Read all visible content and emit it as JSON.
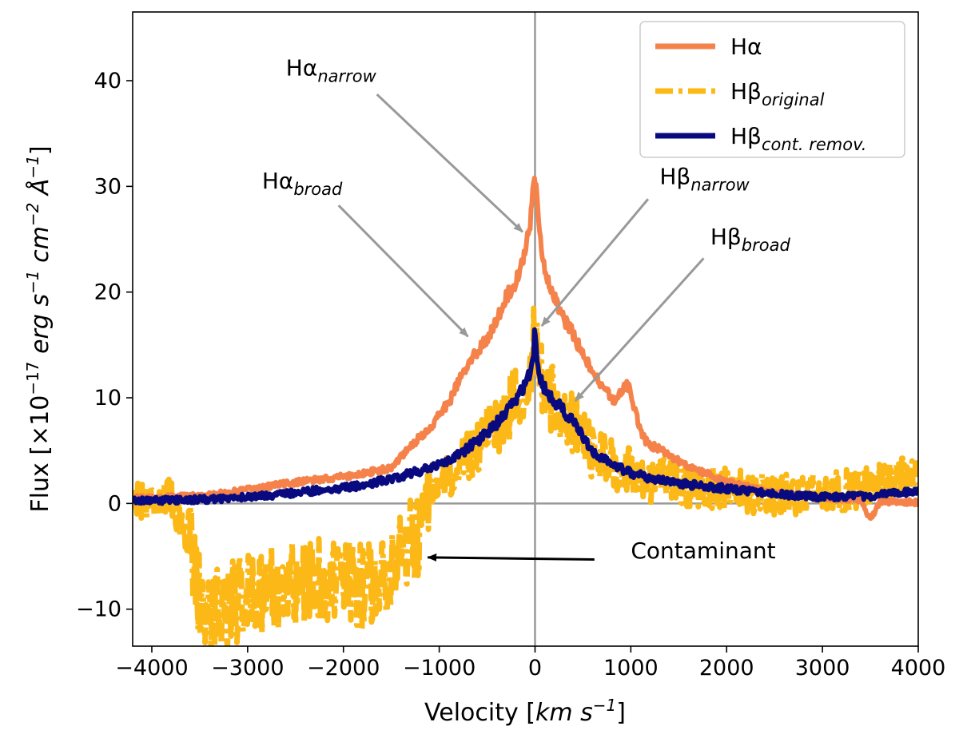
{
  "chart_data": {
    "type": "line",
    "title": "",
    "xlabel": "Velocity [km s⁻¹]",
    "xlabel_parts": {
      "main": "Velocity [",
      "unit": "km s",
      "exp": "−1",
      "close": "]"
    },
    "ylabel": "Flux [×10⁻¹⁷ erg s⁻¹ cm⁻² Å⁻¹]",
    "ylabel_parts": {
      "a": "Flux [×10",
      "e1": "−17",
      "b": " erg s",
      "e2": "−1",
      "c": " cm",
      "e3": "−2",
      "d": " Å",
      "e4": "−1",
      "end": "]"
    },
    "xlim": [
      -4200,
      4000
    ],
    "ylim": [
      -13.5,
      46.5
    ],
    "xticks": [
      -4000,
      -3000,
      -2000,
      -1000,
      0,
      1000,
      2000,
      3000,
      4000
    ],
    "xtick_labels": [
      "−4000",
      "−3000",
      "−2000",
      "−1000",
      "0",
      "1000",
      "2000",
      "3000",
      "4000"
    ],
    "yticks": [
      -10,
      0,
      10,
      20,
      30,
      40
    ],
    "ytick_labels": [
      "−10",
      "0",
      "10",
      "20",
      "30",
      "40"
    ],
    "reference_lines": {
      "x": 0,
      "y": 0,
      "color": "#999999"
    },
    "legend": {
      "position": "top-right",
      "entries": [
        {
          "base": "Hα",
          "sub": "",
          "color": "#f5824a",
          "style": "solid"
        },
        {
          "base": "Hβ",
          "sub": "original",
          "color": "#fbb816",
          "style": "dashdot"
        },
        {
          "base": "Hβ",
          "sub": "cont. remov.",
          "color": "#0a0a80",
          "style": "solid"
        }
      ]
    },
    "series": [
      {
        "name": "Hα",
        "color": "#f5824a",
        "style": "solid",
        "x": [
          -4200,
          -3800,
          -3400,
          -3000,
          -2600,
          -2200,
          -1800,
          -1500,
          -1300,
          -1100,
          -1000,
          -900,
          -800,
          -700,
          -600,
          -500,
          -400,
          -300,
          -200,
          -150,
          -100,
          -60,
          -30,
          -10,
          0,
          10,
          30,
          60,
          100,
          150,
          200,
          300,
          400,
          500,
          600,
          700,
          800,
          850,
          900,
          950,
          1000,
          1050,
          1100,
          1150,
          1200,
          1300,
          1400,
          1500,
          1600,
          1800,
          2000,
          2500,
          3000,
          3400,
          3500,
          3600,
          4000
        ],
        "y": [
          0.5,
          0.6,
          0.8,
          1.3,
          1.9,
          2.3,
          2.8,
          3.4,
          5.5,
          7.0,
          8.5,
          9.5,
          11.5,
          13.0,
          14.5,
          15.5,
          17.5,
          19.5,
          21.0,
          22.5,
          24.0,
          26.0,
          28.5,
          30.5,
          31.0,
          30.0,
          28.0,
          25.0,
          22.0,
          20.5,
          19.5,
          17.5,
          16.0,
          14.0,
          12.5,
          11.0,
          10.0,
          9.5,
          10.8,
          11.3,
          10.5,
          8.5,
          7.0,
          6.0,
          5.5,
          5.2,
          4.5,
          4.0,
          3.5,
          2.8,
          2.0,
          1.0,
          0.6,
          0.3,
          -1.5,
          0.2,
          0.1
        ],
        "noise": 0.35
      },
      {
        "name": "Hβ original",
        "color": "#fbb816",
        "style": "dashdot",
        "x": [
          -4200,
          -3800,
          -3600,
          -3500,
          -3400,
          -3200,
          -3000,
          -2800,
          -2600,
          -2400,
          -2200,
          -2000,
          -1800,
          -1600,
          -1400,
          -1200,
          -1100,
          -1000,
          -800,
          -600,
          -400,
          -200,
          -100,
          -50,
          -20,
          0,
          20,
          50,
          100,
          200,
          300,
          400,
          500,
          600,
          800,
          1000,
          1200,
          1500,
          2000,
          2500,
          3000,
          3500,
          3800,
          4000
        ],
        "y": [
          0.5,
          0.4,
          -3.0,
          -9.0,
          -10.5,
          -9.5,
          -8.5,
          -8.0,
          -7.5,
          -7.5,
          -7.0,
          -7.5,
          -8.0,
          -7.0,
          -4.5,
          -3.0,
          -0.5,
          1.5,
          3.5,
          5.5,
          7.5,
          10.0,
          11.5,
          13.0,
          15.0,
          16.0,
          14.0,
          12.0,
          10.5,
          9.5,
          8.5,
          7.5,
          6.0,
          5.0,
          3.8,
          3.0,
          2.3,
          1.8,
          1.3,
          0.8,
          0.8,
          1.6,
          2.2,
          2.4
        ],
        "noise": 2.6
      },
      {
        "name": "Hβ cont. remov.",
        "color": "#0a0a80",
        "style": "solid",
        "x": [
          -4200,
          -3800,
          -3400,
          -3000,
          -2600,
          -2200,
          -1800,
          -1400,
          -1000,
          -800,
          -600,
          -400,
          -200,
          -100,
          -50,
          -20,
          0,
          20,
          50,
          100,
          200,
          300,
          400,
          500,
          600,
          800,
          1000,
          1200,
          1500,
          2000,
          2500,
          3000,
          3500,
          4000
        ],
        "y": [
          0.3,
          0.3,
          0.4,
          0.6,
          0.9,
          1.3,
          1.7,
          2.6,
          3.6,
          4.6,
          5.9,
          7.6,
          9.8,
          11.3,
          12.5,
          14.0,
          16.5,
          14.0,
          12.0,
          10.8,
          9.8,
          8.7,
          7.7,
          6.2,
          5.0,
          3.7,
          2.9,
          2.4,
          1.9,
          1.4,
          0.9,
          0.6,
          0.7,
          1.2
        ],
        "noise": 0.45
      }
    ],
    "annotations": [
      {
        "base": "Hα",
        "sub": "narrow",
        "point_to": [
          -130,
          25.7
        ],
        "text_at": [
          -2600,
          40.5
        ],
        "arrow_from": [
          -1650,
          38.7
        ],
        "color": "#999999"
      },
      {
        "base": "Hα",
        "sub": "broad",
        "point_to": [
          -700,
          15.8
        ],
        "text_at": [
          -2850,
          29.8
        ],
        "arrow_from": [
          -2050,
          28.2
        ],
        "color": "#999999"
      },
      {
        "base": "Hβ",
        "sub": "narrow",
        "point_to": [
          70,
          16.8
        ],
        "text_at": [
          1300,
          30.2
        ],
        "arrow_from": [
          1180,
          28.8
        ],
        "color": "#999999"
      },
      {
        "base": "Hβ",
        "sub": "broad",
        "point_to": [
          420,
          9.7
        ],
        "text_at": [
          1830,
          24.5
        ],
        "arrow_from": [
          1760,
          23.2
        ],
        "color": "#999999"
      },
      {
        "base": "Contaminant",
        "sub": "",
        "point_to": [
          -1120,
          -5.1
        ],
        "text_at": [
          1000,
          -5.2
        ],
        "arrow_from": [
          620,
          -5.3
        ],
        "color": "#000000"
      }
    ]
  }
}
